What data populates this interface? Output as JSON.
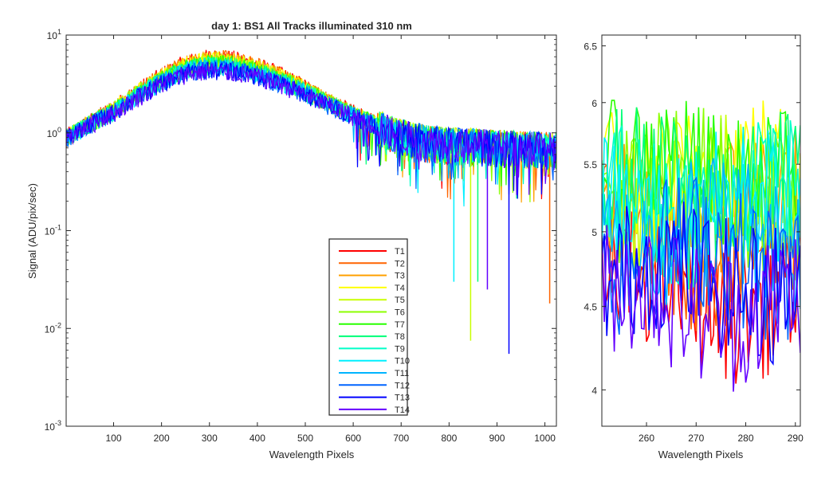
{
  "title": "day 1: BS1   All Tracks illuminated   310 nm",
  "chart_data": [
    {
      "type": "line",
      "panel": "main",
      "xlabel": "Wavelength Pixels",
      "ylabel": "Signal (ADU/pix/sec)",
      "xlim": [
        1,
        1024
      ],
      "ylim": [
        0.001,
        10
      ],
      "yscale": "log",
      "xticks": [
        100,
        200,
        300,
        400,
        500,
        600,
        700,
        800,
        900,
        1000
      ],
      "yticks": [
        {
          "value": 10,
          "base": "10",
          "exp": "1"
        },
        {
          "value": 1,
          "base": "10",
          "exp": "0"
        },
        {
          "value": 0.1,
          "base": "10",
          "exp": "-1"
        },
        {
          "value": 0.01,
          "base": "10",
          "exp": "-2"
        },
        {
          "value": 0.001,
          "base": "10",
          "exp": "-3"
        }
      ],
      "envelope": {
        "x": [
          1,
          50,
          100,
          150,
          200,
          250,
          300,
          350,
          400,
          450,
          500,
          550,
          600,
          650,
          700,
          750,
          800,
          850,
          900,
          950,
          1000,
          1024
        ],
        "y": [
          0.9,
          1.25,
          1.7,
          2.5,
          3.5,
          4.6,
          5.1,
          4.9,
          4.3,
          3.5,
          2.7,
          2.0,
          1.55,
          1.2,
          0.98,
          0.85,
          0.8,
          0.78,
          0.76,
          0.74,
          0.72,
          0.72
        ]
      },
      "dips": [
        {
          "x": 845,
          "y": 0.0075,
          "series": "T5"
        },
        {
          "x": 925,
          "y": 0.0055,
          "series": "T13"
        },
        {
          "x": 860,
          "y": 0.03,
          "series": "T8"
        },
        {
          "x": 810,
          "y": 0.03,
          "series": "T10"
        },
        {
          "x": 1010,
          "y": 0.018,
          "series": "T2"
        },
        {
          "x": 880,
          "y": 0.025,
          "series": "T14"
        }
      ]
    },
    {
      "type": "line",
      "panel": "zoom",
      "xlabel": "Wavelength Pixels",
      "xlim": [
        251,
        291
      ],
      "ylim": [
        3.8,
        6.6
      ],
      "yscale": "log",
      "xticks": [
        260,
        270,
        280,
        290
      ],
      "yticks": [
        4,
        4.5,
        5,
        5.5,
        6,
        6.5
      ],
      "series_levels": [
        4.6,
        4.95,
        5.2,
        5.45,
        5.3,
        5.35,
        5.45,
        5.35,
        5.25,
        5.2,
        5.0,
        4.85,
        4.7,
        4.55
      ]
    }
  ],
  "legend": {
    "placement": "bottom-center",
    "entries": [
      {
        "label": "T1",
        "color": "#ff0000"
      },
      {
        "label": "T2",
        "color": "#ff6400"
      },
      {
        "label": "T3",
        "color": "#ffa000"
      },
      {
        "label": "T4",
        "color": "#ffff00"
      },
      {
        "label": "T5",
        "color": "#c8ff00"
      },
      {
        "label": "T6",
        "color": "#8cff00"
      },
      {
        "label": "T7",
        "color": "#28ff00"
      },
      {
        "label": "T8",
        "color": "#00ff78"
      },
      {
        "label": "T9",
        "color": "#00ffc8"
      },
      {
        "label": "T10",
        "color": "#00f0ff"
      },
      {
        "label": "T11",
        "color": "#00b4ff"
      },
      {
        "label": "T12",
        "color": "#0064ff"
      },
      {
        "label": "T13",
        "color": "#0000ff"
      },
      {
        "label": "T14",
        "color": "#6400ff"
      }
    ]
  }
}
